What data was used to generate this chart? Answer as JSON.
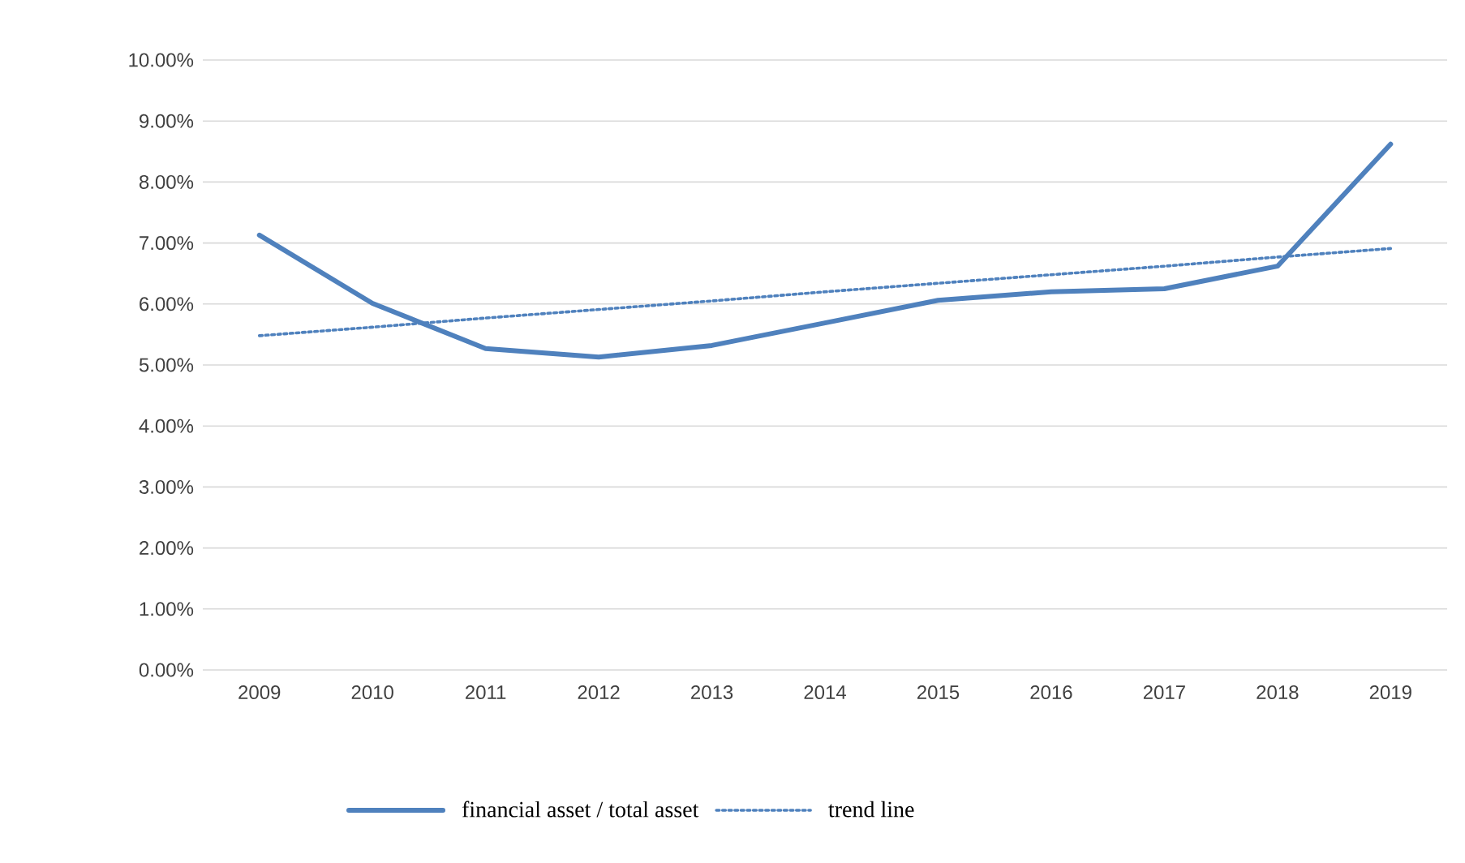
{
  "chart_data": {
    "type": "line",
    "categories": [
      "2009",
      "2010",
      "2011",
      "2012",
      "2013",
      "2014",
      "2015",
      "2016",
      "2017",
      "2018",
      "2019"
    ],
    "series": [
      {
        "name": "financial asset / total asset",
        "color": "#4f81bd",
        "values": [
          7.13,
          6.01,
          5.27,
          5.13,
          5.32,
          5.69,
          6.06,
          6.2,
          6.25,
          6.62,
          8.62
        ],
        "line_style": "solid"
      },
      {
        "name": "trend line",
        "color": "#4f81bd",
        "values": [
          5.48,
          5.62,
          5.77,
          5.91,
          6.05,
          6.2,
          6.34,
          6.48,
          6.62,
          6.77,
          6.91
        ],
        "line_style": "dotted"
      }
    ],
    "ylim": [
      0,
      10
    ],
    "yticks": [
      {
        "value": 0,
        "label": "0.00%"
      },
      {
        "value": 1,
        "label": "1.00%"
      },
      {
        "value": 2,
        "label": "2.00%"
      },
      {
        "value": 3,
        "label": "3.00%"
      },
      {
        "value": 4,
        "label": "4.00%"
      },
      {
        "value": 5,
        "label": "5.00%"
      },
      {
        "value": 6,
        "label": "6.00%"
      },
      {
        "value": 7,
        "label": "7.00%"
      },
      {
        "value": 8,
        "label": "8.00%"
      },
      {
        "value": 9,
        "label": "9.00%"
      },
      {
        "value": 10,
        "label": "10.00%"
      }
    ],
    "grid": "y",
    "legend": "bottom"
  }
}
